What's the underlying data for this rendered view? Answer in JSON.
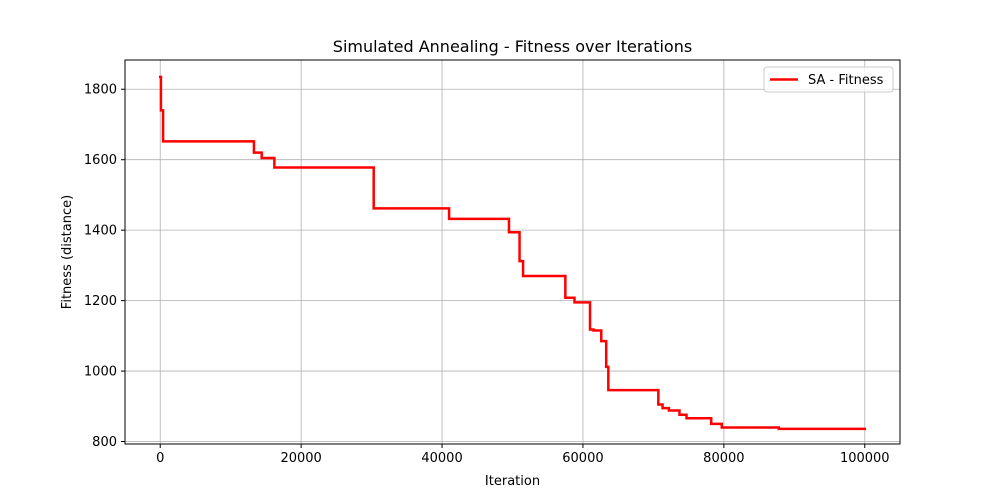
{
  "chart_data": {
    "type": "line",
    "title": "Simulated Annealing - Fitness over Iterations",
    "xlabel": "Iteration",
    "ylabel": "Fitness (distance)",
    "xlim": [
      -5000,
      105000
    ],
    "ylim": [
      793,
      1883
    ],
    "x_ticks": [
      0,
      20000,
      40000,
      60000,
      80000,
      100000
    ],
    "x_tick_labels": [
      "0",
      "20000",
      "40000",
      "60000",
      "80000",
      "100000"
    ],
    "y_ticks": [
      800,
      1000,
      1200,
      1400,
      1600,
      1800
    ],
    "y_tick_labels": [
      "800",
      "1000",
      "1200",
      "1400",
      "1600",
      "1800"
    ],
    "grid": true,
    "legend_position": "top-right",
    "series": [
      {
        "name": "SA - Fitness",
        "color": "#ff0000",
        "step": true,
        "points": [
          [
            0,
            1835
          ],
          [
            100,
            1740
          ],
          [
            400,
            1652
          ],
          [
            13300,
            1620
          ],
          [
            14400,
            1605
          ],
          [
            16200,
            1578
          ],
          [
            30300,
            1462
          ],
          [
            41000,
            1432
          ],
          [
            49500,
            1394
          ],
          [
            51000,
            1312
          ],
          [
            51500,
            1270
          ],
          [
            57500,
            1208
          ],
          [
            58800,
            1195
          ],
          [
            61000,
            1118
          ],
          [
            61500,
            1115
          ],
          [
            62600,
            1085
          ],
          [
            63300,
            1012
          ],
          [
            63600,
            946
          ],
          [
            70700,
            905
          ],
          [
            71300,
            895
          ],
          [
            72200,
            888
          ],
          [
            73700,
            876
          ],
          [
            74700,
            866
          ],
          [
            78200,
            850
          ],
          [
            79700,
            840
          ],
          [
            87800,
            836
          ],
          [
            100000,
            836
          ]
        ]
      }
    ]
  }
}
